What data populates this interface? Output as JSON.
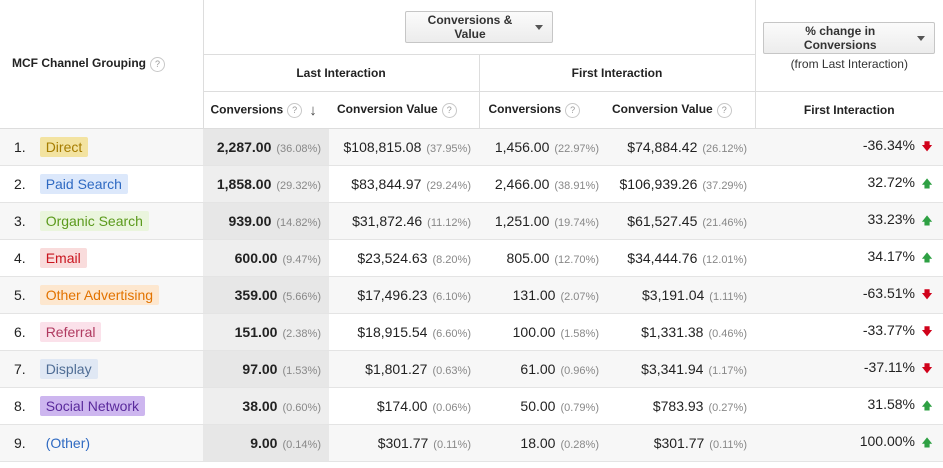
{
  "header": {
    "dimension_label": "MCF Channel Grouping",
    "metric_dropdown": "Conversions & Value",
    "compare_dropdown": "% change in Conversions",
    "compare_subtitle": "(from Last Interaction)",
    "last_interaction": "Last Interaction",
    "first_interaction": "First Interaction",
    "col_conversions": "Conversions",
    "col_conversion_value": "Conversion Value",
    "col_first_interaction": "First Interaction",
    "help_glyph": "?",
    "sort_glyph": "↓"
  },
  "rows": [
    {
      "idx": "1.",
      "channel": "Direct",
      "bg": "#f3e3a1",
      "fg": "#a67c00",
      "li_conv": "2,287.00",
      "li_conv_pct": "(36.08%)",
      "li_val": "$108,815.08",
      "li_val_pct": "(37.95%)",
      "fi_conv": "1,456.00",
      "fi_conv_pct": "(22.97%)",
      "fi_val": "$74,884.42",
      "fi_val_pct": "(26.12%)",
      "change": "-36.34%",
      "dir": "down",
      "arrow": "🡇"
    },
    {
      "idx": "2.",
      "channel": "Paid Search",
      "bg": "#dce8fb",
      "fg": "#2f6ac2",
      "li_conv": "1,858.00",
      "li_conv_pct": "(29.32%)",
      "li_val": "$83,844.97",
      "li_val_pct": "(29.24%)",
      "fi_conv": "2,466.00",
      "fi_conv_pct": "(38.91%)",
      "fi_val": "$106,939.26",
      "fi_val_pct": "(37.29%)",
      "change": "32.72%",
      "dir": "up",
      "arrow": "🡅"
    },
    {
      "idx": "3.",
      "channel": "Organic Search",
      "bg": "#eaf5dd",
      "fg": "#5b9a1c",
      "li_conv": "939.00",
      "li_conv_pct": "(14.82%)",
      "li_val": "$31,872.46",
      "li_val_pct": "(11.12%)",
      "fi_conv": "1,251.00",
      "fi_conv_pct": "(19.74%)",
      "fi_val": "$61,527.45",
      "fi_val_pct": "(21.46%)",
      "change": "33.23%",
      "dir": "up",
      "arrow": "🡅"
    },
    {
      "idx": "4.",
      "channel": "Email",
      "bg": "#f9dcdc",
      "fg": "#c9141e",
      "li_conv": "600.00",
      "li_conv_pct": "(9.47%)",
      "li_val": "$23,524.63",
      "li_val_pct": "(8.20%)",
      "fi_conv": "805.00",
      "fi_conv_pct": "(12.70%)",
      "fi_val": "$34,444.76",
      "fi_val_pct": "(12.01%)",
      "change": "34.17%",
      "dir": "up",
      "arrow": "🡅"
    },
    {
      "idx": "5.",
      "channel": "Other Advertising",
      "bg": "#fde7cf",
      "fg": "#e27300",
      "li_conv": "359.00",
      "li_conv_pct": "(5.66%)",
      "li_val": "$17,496.23",
      "li_val_pct": "(6.10%)",
      "fi_conv": "131.00",
      "fi_conv_pct": "(2.07%)",
      "fi_val": "$3,191.04",
      "fi_val_pct": "(1.11%)",
      "change": "-63.51%",
      "dir": "down",
      "arrow": "🡇"
    },
    {
      "idx": "6.",
      "channel": "Referral",
      "bg": "#fbe1ea",
      "fg": "#b03a60",
      "li_conv": "151.00",
      "li_conv_pct": "(2.38%)",
      "li_val": "$18,915.54",
      "li_val_pct": "(6.60%)",
      "fi_conv": "100.00",
      "fi_conv_pct": "(1.58%)",
      "fi_val": "$1,331.38",
      "fi_val_pct": "(0.46%)",
      "change": "-33.77%",
      "dir": "down",
      "arrow": "🡇"
    },
    {
      "idx": "7.",
      "channel": "Display",
      "bg": "#e0e8f4",
      "fg": "#4f6d95",
      "li_conv": "97.00",
      "li_conv_pct": "(1.53%)",
      "li_val": "$1,801.27",
      "li_val_pct": "(0.63%)",
      "fi_conv": "61.00",
      "fi_conv_pct": "(0.96%)",
      "fi_val": "$3,341.94",
      "fi_val_pct": "(1.17%)",
      "change": "-37.11%",
      "dir": "down",
      "arrow": "🡇"
    },
    {
      "idx": "8.",
      "channel": "Social Network",
      "bg": "#cdb6ef",
      "fg": "#5a2a9c",
      "li_conv": "38.00",
      "li_conv_pct": "(0.60%)",
      "li_val": "$174.00",
      "li_val_pct": "(0.06%)",
      "fi_conv": "50.00",
      "fi_conv_pct": "(0.79%)",
      "fi_val": "$783.93",
      "fi_val_pct": "(0.27%)",
      "change": "31.58%",
      "dir": "up",
      "arrow": "🡅"
    },
    {
      "idx": "9.",
      "channel": "(Other)",
      "bg": "transparent",
      "fg": "#2f6ac2",
      "li_conv": "9.00",
      "li_conv_pct": "(0.14%)",
      "li_val": "$301.77",
      "li_val_pct": "(0.11%)",
      "fi_conv": "18.00",
      "fi_conv_pct": "(0.28%)",
      "fi_val": "$301.77",
      "fi_val_pct": "(0.11%)",
      "change": "100.00%",
      "dir": "up",
      "arrow": "🡅"
    }
  ]
}
